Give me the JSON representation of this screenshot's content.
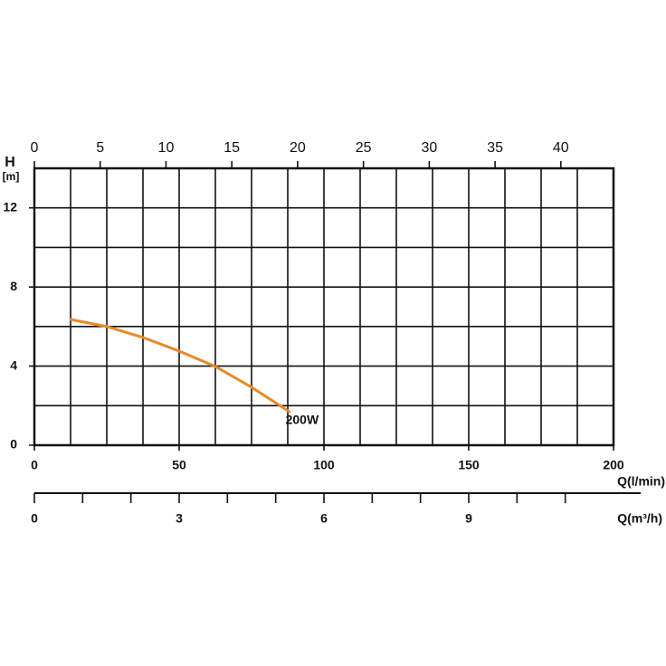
{
  "chart_data": {
    "type": "line",
    "y_axis_label": "H",
    "y_axis_unit": "[m]",
    "x_axis_label": "Q(l/min)",
    "x3_axis_label": "Q(m³/h)",
    "x": [
      12.5,
      25,
      37.5,
      50,
      62.5,
      75,
      88
    ],
    "series": [
      {
        "name": "200W",
        "color": "#e8892a",
        "values": [
          6.36,
          6.0,
          5.45,
          4.76,
          3.98,
          2.93,
          1.7
        ]
      }
    ],
    "xlim": [
      0,
      200
    ],
    "xticks": [
      0,
      50,
      100,
      150,
      200
    ],
    "x_minor_ticks": [
      12.5,
      25,
      37.5,
      62.5,
      75,
      87.5,
      112.5,
      125,
      137.5,
      162.5,
      175,
      187.5
    ],
    "ylim": [
      0,
      14
    ],
    "yticks": [
      0,
      4,
      8,
      12
    ],
    "y_minor_ticks": [
      2,
      6,
      10
    ],
    "x2lim": [
      0,
      44
    ],
    "x2ticks": [
      0,
      5,
      10,
      15,
      20,
      25,
      30,
      35,
      40
    ],
    "x3lim": [
      0,
      12
    ],
    "x3ticks": [
      0,
      3,
      6,
      9
    ],
    "x3_minor_ticks": [
      1,
      2,
      4,
      5,
      7,
      8,
      10,
      11
    ],
    "grid": true
  }
}
